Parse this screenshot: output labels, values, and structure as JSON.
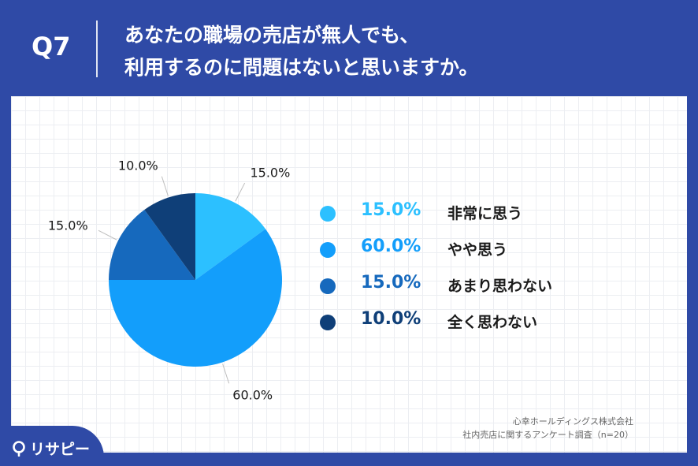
{
  "header": {
    "q_number": "Q7",
    "question_line1": "あなたの職場の売店が無人でも、",
    "question_line2": "利用するのに問題はないと思いますか。"
  },
  "chart_data": {
    "type": "pie",
    "title": "",
    "slices": [
      {
        "label": "非常に思う",
        "value": 15.0,
        "display": "15.0%",
        "color": "#2cc0ff"
      },
      {
        "label": "やや思う",
        "value": 60.0,
        "display": "60.0%",
        "color": "#139efb"
      },
      {
        "label": "あまり思わない",
        "value": 15.0,
        "display": "15.0%",
        "color": "#1669bd"
      },
      {
        "label": "全く思わない",
        "value": 10.0,
        "display": "10.0%",
        "color": "#0f3f78"
      }
    ],
    "legend_position": "right"
  },
  "source": {
    "line1": "心幸ホールディングス株式会社",
    "line2": "社内売店に関するアンケート調査（n=20）"
  },
  "brand": {
    "name": "リサピー"
  },
  "colors": {
    "background": "#2f4aa6",
    "card": "#ffffff"
  }
}
